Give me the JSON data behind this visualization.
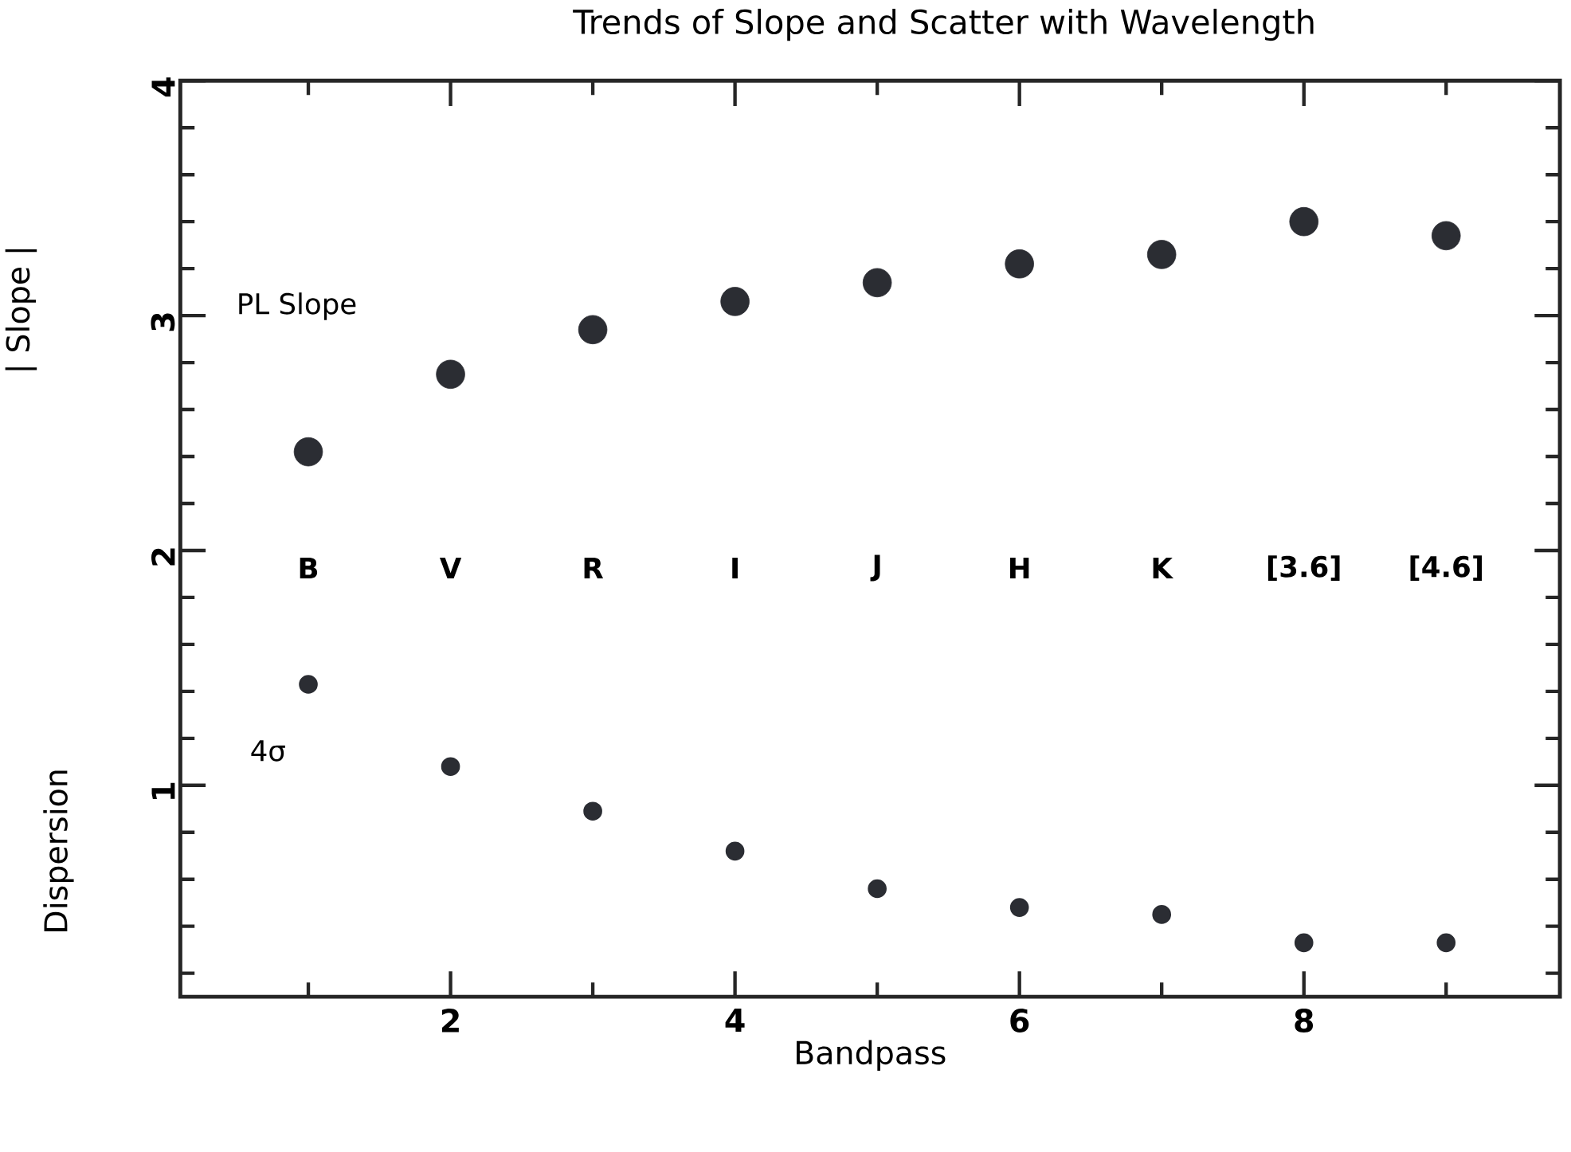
{
  "chart_data": {
    "type": "scatter",
    "title": "Trends of Slope and Scatter with Wavelength",
    "xlabel": "Bandpass",
    "ylabel": "| Slope |",
    "x": [
      1,
      2,
      3,
      4,
      5,
      6,
      7,
      8,
      9
    ],
    "series": [
      {
        "name": "PL Slope",
        "color": "#2b2d33",
        "values": [
          2.42,
          2.75,
          2.94,
          3.06,
          3.14,
          3.22,
          3.26,
          3.4,
          3.34
        ]
      },
      {
        "name": "4σ",
        "color": "#2b2d33",
        "values": [
          1.43,
          1.08,
          0.89,
          0.72,
          0.56,
          0.48,
          0.45,
          0.33,
          0.33
        ]
      }
    ],
    "marker": "circle",
    "legend": "left",
    "xlim": [
      0.1,
      9.8
    ],
    "ylim": [
      0.1,
      4
    ],
    "xticks": [
      {
        "value": 1,
        "label": null
      },
      2,
      {
        "value": 3,
        "label": null
      },
      4,
      {
        "value": 5,
        "label": null
      },
      6,
      {
        "value": 7,
        "label": null
      },
      8,
      {
        "value": 9,
        "label": null
      }
    ],
    "yticks": [
      {
        "value": 0.2,
        "label": null
      },
      {
        "value": 0.4,
        "label": null
      },
      {
        "value": 0.6,
        "label": null
      },
      {
        "value": 0.8,
        "label": null
      },
      1,
      {
        "value": 1.2,
        "label": null
      },
      {
        "value": 1.4,
        "label": null
      },
      {
        "value": 1.6,
        "label": null
      },
      {
        "value": 1.8,
        "label": null
      },
      2,
      {
        "value": 2.2,
        "label": null
      },
      {
        "value": 2.4,
        "label": null
      },
      {
        "value": 2.6,
        "label": null
      },
      {
        "value": 2.8,
        "label": null
      },
      3,
      {
        "value": 3.2,
        "label": null
      },
      {
        "value": 3.4,
        "label": null
      },
      {
        "value": 3.6,
        "label": null
      },
      {
        "value": 3.8,
        "label": null
      },
      4
    ],
    "annotations": [
      "Dispersion",
      "B",
      "V",
      "R",
      "I",
      "J",
      "H",
      "K",
      "[3.6]",
      "[4.6]"
    ]
  }
}
